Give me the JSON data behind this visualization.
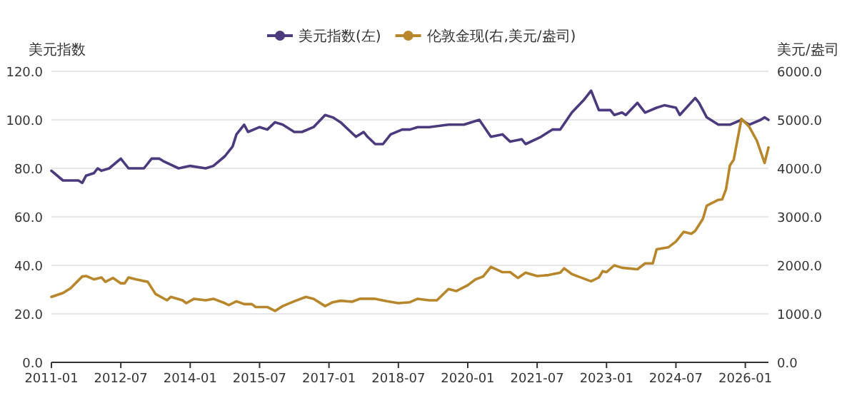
{
  "chart_data": {
    "type": "line",
    "ylabel": "美元指数",
    "y2label": "美元/盎司",
    "legend": "top",
    "grid": "y",
    "xlim": [
      "2011-01",
      "2026-07"
    ],
    "xticks": [
      "2011-01",
      "2012-07",
      "2014-01",
      "2015-07",
      "2017-01",
      "2018-07",
      "2020-01",
      "2021-07",
      "2023-01",
      "2024-07",
      "2026-01"
    ],
    "ylim": [
      0,
      120
    ],
    "yticks": [
      {
        "value": 0,
        "label": "0.0"
      },
      {
        "value": 20,
        "label": "20.0"
      },
      {
        "value": 40,
        "label": "40.0"
      },
      {
        "value": 60,
        "label": "60.0"
      },
      {
        "value": 80,
        "label": "80.0"
      },
      {
        "value": 100,
        "label": "100.0"
      },
      {
        "value": 120,
        "label": "120.0"
      }
    ],
    "y2lim": [
      0,
      6000
    ],
    "y2ticks": [
      {
        "value": 0,
        "label": "0.0"
      },
      {
        "value": 1000,
        "label": "1000.0"
      },
      {
        "value": 2000,
        "label": "2000.0"
      },
      {
        "value": 3000,
        "label": "3000.0"
      },
      {
        "value": 4000,
        "label": "4000.0"
      },
      {
        "value": 5000,
        "label": "5000.0"
      },
      {
        "value": 6000,
        "label": "6000.0"
      }
    ],
    "series": [
      {
        "name": "美元指数(左)",
        "color": "#4b3a7d",
        "x": [
          "2011-01",
          "2011-04",
          "2011-08",
          "2011-09",
          "2011-10",
          "2011-12",
          "2012-01",
          "2012-02",
          "2012-04",
          "2012-07",
          "2012-09",
          "2012-11",
          "2013-01",
          "2013-03",
          "2013-05",
          "2013-06",
          "2013-10",
          "2014-01",
          "2014-05",
          "2014-07",
          "2014-10",
          "2014-12",
          "2015-01",
          "2015-03",
          "2015-04",
          "2015-07",
          "2015-09",
          "2015-11",
          "2016-01",
          "2016-04",
          "2016-06",
          "2016-09",
          "2016-12",
          "2017-02",
          "2017-04",
          "2017-08",
          "2017-10",
          "2017-11",
          "2018-01",
          "2018-03",
          "2018-05",
          "2018-08",
          "2018-10",
          "2018-12",
          "2019-03",
          "2019-08",
          "2019-12",
          "2020-04",
          "2020-07",
          "2020-10",
          "2020-12",
          "2021-03",
          "2021-04",
          "2021-08",
          "2021-11",
          "2022-01",
          "2022-04",
          "2022-07",
          "2022-09",
          "2022-11",
          "2023-02",
          "2023-03",
          "2023-05",
          "2023-06",
          "2023-09",
          "2023-11",
          "2024-02",
          "2024-04",
          "2024-07",
          "2024-08",
          "2024-12",
          "2025-01",
          "2025-03",
          "2025-06",
          "2025-09",
          "2025-12",
          "2026-02",
          "2026-05",
          "2026-06",
          "2026-07"
        ],
        "values": [
          79,
          75,
          75,
          74,
          77,
          78,
          80,
          79,
          80,
          84,
          80,
          80,
          80,
          84,
          84,
          83,
          80,
          81,
          80,
          81,
          85,
          89,
          94,
          98,
          95,
          97,
          96,
          99,
          98,
          95,
          95,
          97,
          102,
          101,
          99,
          93,
          95,
          93,
          90,
          90,
          94,
          96,
          96,
          97,
          97,
          98,
          98,
          100,
          93,
          94,
          91,
          92,
          90,
          93,
          96,
          96,
          103,
          108,
          112,
          104,
          104,
          102,
          103,
          102,
          107,
          103,
          105,
          106,
          105,
          102,
          109,
          107,
          101,
          98,
          98,
          100,
          98,
          100,
          101,
          100
        ]
      },
      {
        "name": "伦敦金现(右,美元/盎司)",
        "color": "#b8862b",
        "axis": "y2",
        "x": [
          "2011-01",
          "2011-04",
          "2011-06",
          "2011-07",
          "2011-09",
          "2011-10",
          "2011-12",
          "2012-02",
          "2012-03",
          "2012-05",
          "2012-07",
          "2012-08",
          "2012-09",
          "2012-11",
          "2013-02",
          "2013-04",
          "2013-07",
          "2013-08",
          "2013-11",
          "2013-12",
          "2014-02",
          "2014-05",
          "2014-07",
          "2014-10",
          "2014-11",
          "2015-01",
          "2015-03",
          "2015-05",
          "2015-06",
          "2015-09",
          "2015-11",
          "2016-01",
          "2016-04",
          "2016-07",
          "2016-09",
          "2016-12",
          "2017-02",
          "2017-04",
          "2017-07",
          "2017-09",
          "2018-01",
          "2018-04",
          "2018-07",
          "2018-10",
          "2018-12",
          "2019-03",
          "2019-05",
          "2019-08",
          "2019-10",
          "2020-01",
          "2020-03",
          "2020-05",
          "2020-07",
          "2020-10",
          "2020-12",
          "2021-02",
          "2021-04",
          "2021-07",
          "2021-10",
          "2022-01",
          "2022-02",
          "2022-04",
          "2022-06",
          "2022-09",
          "2022-11",
          "2022-12",
          "2023-01",
          "2023-03",
          "2023-05",
          "2023-09",
          "2023-11",
          "2024-01",
          "2024-02",
          "2024-05",
          "2024-07",
          "2024-09",
          "2024-11",
          "2024-12",
          "2025-02",
          "2025-03",
          "2025-06",
          "2025-07",
          "2025-08",
          "2025-09",
          "2025-10",
          "2025-11",
          "2025-12",
          "2026-02",
          "2026-04",
          "2026-06",
          "2026-07"
        ],
        "values": [
          1350,
          1430,
          1530,
          1610,
          1770,
          1780,
          1710,
          1750,
          1660,
          1740,
          1630,
          1630,
          1750,
          1710,
          1660,
          1410,
          1280,
          1350,
          1280,
          1220,
          1310,
          1280,
          1310,
          1220,
          1180,
          1260,
          1200,
          1200,
          1140,
          1140,
          1060,
          1160,
          1260,
          1350,
          1310,
          1160,
          1240,
          1270,
          1250,
          1310,
          1310,
          1260,
          1220,
          1240,
          1310,
          1280,
          1280,
          1510,
          1470,
          1590,
          1710,
          1770,
          1970,
          1860,
          1860,
          1740,
          1850,
          1780,
          1800,
          1850,
          1940,
          1820,
          1760,
          1670,
          1750,
          1880,
          1860,
          2000,
          1950,
          1920,
          2040,
          2040,
          2330,
          2370,
          2490,
          2690,
          2650,
          2710,
          2960,
          3230,
          3350,
          3360,
          3570,
          4060,
          4180,
          4600,
          5020,
          4860,
          4570,
          4110,
          4430
        ]
      }
    ]
  }
}
